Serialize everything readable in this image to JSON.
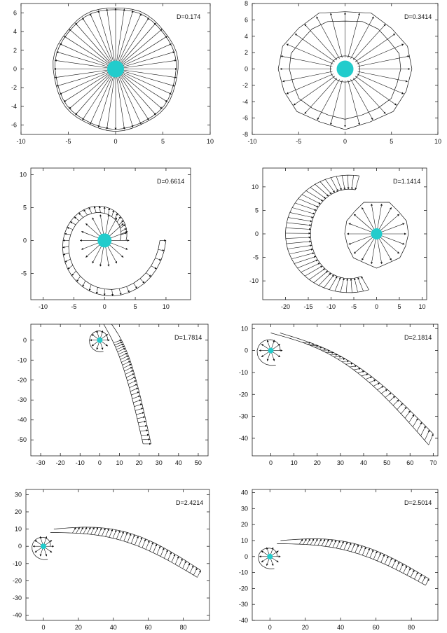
{
  "chart_data": [
    {
      "type": "line",
      "label": "D=0.174",
      "D": 0.174,
      "xlim": [
        -10,
        10
      ],
      "ylim": [
        -7,
        7
      ],
      "xticks": [
        -10,
        -5,
        0,
        5,
        10
      ],
      "yticks": [
        -6,
        -4,
        -2,
        0,
        2,
        4,
        6
      ]
    },
    {
      "type": "line",
      "label": "D=0.3414",
      "D": 0.3414,
      "xlim": [
        -10,
        10
      ],
      "ylim": [
        -8,
        8
      ],
      "xticks": [
        -10,
        -5,
        0,
        5,
        10
      ],
      "yticks": [
        -8,
        -6,
        -4,
        -2,
        0,
        2,
        4,
        6,
        8
      ]
    },
    {
      "type": "line",
      "label": "D=0.6614",
      "D": 0.6614,
      "xlim": [
        -12,
        14
      ],
      "ylim": [
        -9,
        11
      ],
      "xticks": [
        -10,
        -5,
        0,
        5,
        10
      ],
      "yticks": [
        -5,
        0,
        5,
        10
      ]
    },
    {
      "type": "line",
      "label": "D=1.1414",
      "D": 1.1414,
      "xlim": [
        -25,
        11
      ],
      "ylim": [
        -14,
        14
      ],
      "xticks": [
        -20,
        -15,
        -10,
        -5,
        0,
        5,
        10
      ],
      "yticks": [
        -10,
        -5,
        0,
        5,
        10
      ]
    },
    {
      "type": "line",
      "label": "D=1.7814",
      "D": 1.7814,
      "xlim": [
        -35,
        55
      ],
      "ylim": [
        -58,
        8
      ],
      "xticks": [
        -30,
        -20,
        -10,
        0,
        10,
        20,
        30,
        40,
        50
      ],
      "yticks": [
        -50,
        -40,
        -30,
        -20,
        -10,
        0
      ]
    },
    {
      "type": "line",
      "label": "D=2.1814",
      "D": 2.1814,
      "xlim": [
        -8,
        72
      ],
      "ylim": [
        -48,
        12
      ],
      "xticks": [
        0,
        10,
        20,
        30,
        40,
        50,
        60,
        70
      ],
      "yticks": [
        -40,
        -30,
        -20,
        -10,
        0,
        10
      ]
    },
    {
      "type": "line",
      "label": "D=2.4214",
      "D": 2.4214,
      "xlim": [
        -10,
        95
      ],
      "ylim": [
        -43,
        33
      ],
      "xticks": [
        0,
        20,
        40,
        60,
        80
      ],
      "yticks": [
        -40,
        -30,
        -20,
        -10,
        0,
        10,
        20,
        30
      ]
    },
    {
      "type": "line",
      "label": "D=2.5014",
      "D": 2.5014,
      "xlim": [
        -10,
        95
      ],
      "ylim": [
        -40,
        42
      ],
      "xticks": [
        0,
        20,
        40,
        60,
        80
      ],
      "yticks": [
        -40,
        -30,
        -20,
        -10,
        0,
        10,
        20,
        30,
        40
      ]
    }
  ],
  "colors": {
    "hub": "#22cccc",
    "line": "#111111",
    "frame": "#222222"
  }
}
